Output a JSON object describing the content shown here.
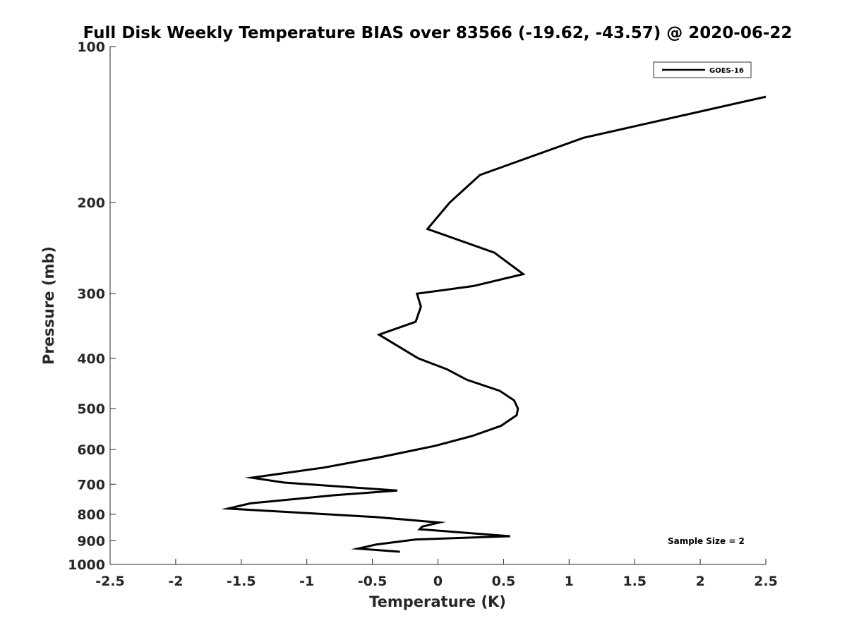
{
  "chart_data": {
    "type": "line",
    "title": "Full Disk Weekly Temperature BIAS over 83566 (-19.62, -43.57) @ 2020-06-22",
    "xlabel": "Temperature (K)",
    "ylabel": "Pressure (mb)",
    "xlim": [
      -2.5,
      2.5
    ],
    "ylim": [
      1000,
      100
    ],
    "y_scale": "log",
    "y_reversed": true,
    "x_ticks": [
      {
        "value": -2.5,
        "label": "-2.5"
      },
      {
        "value": -2,
        "label": "-2"
      },
      {
        "value": -1.5,
        "label": "-1.5"
      },
      {
        "value": -1,
        "label": "-1"
      },
      {
        "value": -0.5,
        "label": "-0.5"
      },
      {
        "value": 0,
        "label": "0"
      },
      {
        "value": 0.5,
        "label": "0.5"
      },
      {
        "value": 1,
        "label": "1"
      },
      {
        "value": 1.5,
        "label": "1.5"
      },
      {
        "value": 2,
        "label": "2"
      },
      {
        "value": 2.5,
        "label": "2.5"
      }
    ],
    "y_ticks": [
      {
        "value": 100,
        "label": "100"
      },
      {
        "value": 200,
        "label": "200"
      },
      {
        "value": 300,
        "label": "300"
      },
      {
        "value": 400,
        "label": "400"
      },
      {
        "value": 500,
        "label": "500"
      },
      {
        "value": 600,
        "label": "600"
      },
      {
        "value": 700,
        "label": "700"
      },
      {
        "value": 800,
        "label": "800"
      },
      {
        "value": 900,
        "label": "900"
      },
      {
        "value": 1000,
        "label": "1000"
      }
    ],
    "grid": false,
    "legend_position": "top-right",
    "annotation": "Sample Size = 2",
    "series": [
      {
        "name": "GOES-16",
        "color": "#000000",
        "points": [
          {
            "x": 2.5,
            "y": 125
          },
          {
            "x": 1.11,
            "y": 150
          },
          {
            "x": 0.32,
            "y": 177
          },
          {
            "x": 0.09,
            "y": 200
          },
          {
            "x": -0.08,
            "y": 225
          },
          {
            "x": 0.43,
            "y": 250
          },
          {
            "x": 0.65,
            "y": 275
          },
          {
            "x": 0.27,
            "y": 290
          },
          {
            "x": -0.16,
            "y": 300
          },
          {
            "x": -0.13,
            "y": 318
          },
          {
            "x": -0.17,
            "y": 340
          },
          {
            "x": -0.45,
            "y": 360
          },
          {
            "x": -0.15,
            "y": 400
          },
          {
            "x": 0.07,
            "y": 420
          },
          {
            "x": 0.22,
            "y": 440
          },
          {
            "x": 0.47,
            "y": 462
          },
          {
            "x": 0.58,
            "y": 482
          },
          {
            "x": 0.61,
            "y": 500
          },
          {
            "x": 0.6,
            "y": 515
          },
          {
            "x": 0.48,
            "y": 540
          },
          {
            "x": 0.26,
            "y": 565
          },
          {
            "x": -0.02,
            "y": 590
          },
          {
            "x": -0.43,
            "y": 620
          },
          {
            "x": -0.87,
            "y": 650
          },
          {
            "x": -1.42,
            "y": 680
          },
          {
            "x": -1.17,
            "y": 695
          },
          {
            "x": -0.31,
            "y": 720
          },
          {
            "x": -0.79,
            "y": 735
          },
          {
            "x": -1.43,
            "y": 762
          },
          {
            "x": -1.6,
            "y": 780
          },
          {
            "x": -0.48,
            "y": 810
          },
          {
            "x": 0.01,
            "y": 830
          },
          {
            "x": -0.12,
            "y": 845
          },
          {
            "x": -0.14,
            "y": 855
          },
          {
            "x": 0.55,
            "y": 882
          },
          {
            "x": -0.17,
            "y": 895
          },
          {
            "x": -0.47,
            "y": 915
          },
          {
            "x": -0.61,
            "y": 932
          },
          {
            "x": -0.29,
            "y": 945
          }
        ]
      }
    ]
  }
}
